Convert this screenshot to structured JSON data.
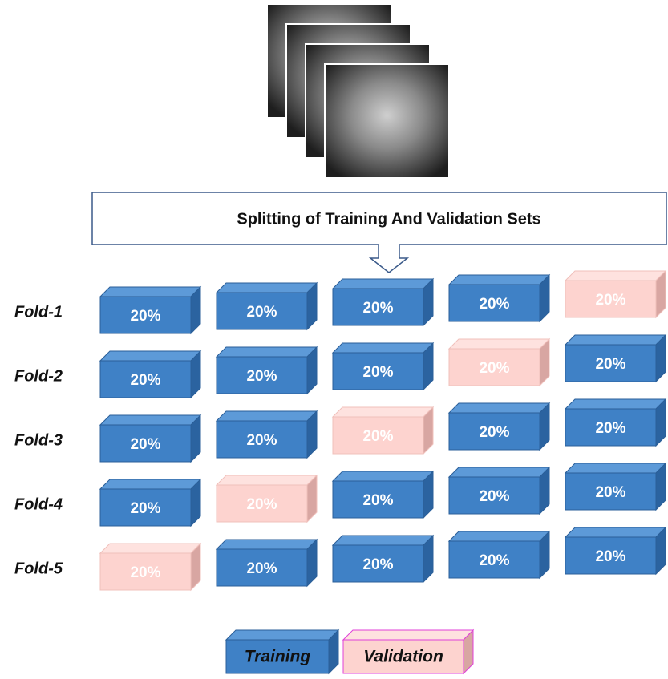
{
  "title": "Splitting of Training And Validation Sets",
  "folds": [
    {
      "label": "Fold-1",
      "blocks": [
        {
          "text": "20%",
          "role": "training"
        },
        {
          "text": "20%",
          "role": "training"
        },
        {
          "text": "20%",
          "role": "training"
        },
        {
          "text": "20%",
          "role": "training"
        },
        {
          "text": "20%",
          "role": "validation"
        }
      ]
    },
    {
      "label": "Fold-2",
      "blocks": [
        {
          "text": "20%",
          "role": "training"
        },
        {
          "text": "20%",
          "role": "training"
        },
        {
          "text": "20%",
          "role": "training"
        },
        {
          "text": "20%",
          "role": "validation"
        },
        {
          "text": "20%",
          "role": "training"
        }
      ]
    },
    {
      "label": "Fold-3",
      "blocks": [
        {
          "text": "20%",
          "role": "training"
        },
        {
          "text": "20%",
          "role": "training"
        },
        {
          "text": "20%",
          "role": "validation"
        },
        {
          "text": "20%",
          "role": "training"
        },
        {
          "text": "20%",
          "role": "training"
        }
      ]
    },
    {
      "label": "Fold-4",
      "blocks": [
        {
          "text": "20%",
          "role": "training"
        },
        {
          "text": "20%",
          "role": "validation"
        },
        {
          "text": "20%",
          "role": "training"
        },
        {
          "text": "20%",
          "role": "training"
        },
        {
          "text": "20%",
          "role": "training"
        }
      ]
    },
    {
      "label": "Fold-5",
      "blocks": [
        {
          "text": "20%",
          "role": "validation"
        },
        {
          "text": "20%",
          "role": "training"
        },
        {
          "text": "20%",
          "role": "training"
        },
        {
          "text": "20%",
          "role": "training"
        },
        {
          "text": "20%",
          "role": "training"
        }
      ]
    }
  ],
  "legend": [
    {
      "text": "Training",
      "role": "training"
    },
    {
      "text": "Validation",
      "role": "validation"
    }
  ]
}
